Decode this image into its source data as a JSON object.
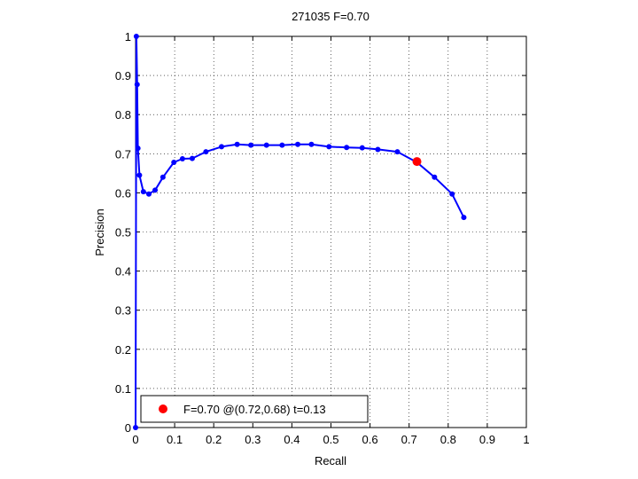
{
  "chart_data": {
    "type": "line",
    "title": "271035 F=0.70",
    "xlabel": "Recall",
    "ylabel": "Precision",
    "xlim": [
      0,
      1
    ],
    "ylim": [
      0,
      1
    ],
    "grid": true,
    "xticks": [
      "0",
      "0.1",
      "0.2",
      "0.3",
      "0.4",
      "0.5",
      "0.6",
      "0.7",
      "0.8",
      "0.9",
      "1"
    ],
    "yticks": [
      "0",
      "0.1",
      "0.2",
      "0.3",
      "0.4",
      "0.5",
      "0.6",
      "0.7",
      "0.8",
      "0.9",
      "1"
    ],
    "series": [
      {
        "color": "#0000ff",
        "x": [
          0.0,
          0.002,
          0.004,
          0.006,
          0.01,
          0.02,
          0.034,
          0.05,
          0.07,
          0.098,
          0.12,
          0.145,
          0.18,
          0.22,
          0.26,
          0.295,
          0.335,
          0.375,
          0.415,
          0.45,
          0.495,
          0.54,
          0.58,
          0.62,
          0.67,
          0.72,
          0.765,
          0.81,
          0.84
        ],
        "y": [
          0.0,
          1.0,
          0.877,
          0.714,
          0.645,
          0.603,
          0.597,
          0.607,
          0.64,
          0.678,
          0.687,
          0.688,
          0.705,
          0.718,
          0.724,
          0.722,
          0.722,
          0.722,
          0.724,
          0.724,
          0.718,
          0.716,
          0.715,
          0.711,
          0.705,
          0.678,
          0.64,
          0.597,
          0.537
        ]
      }
    ],
    "highlight": {
      "x": 0.72,
      "y": 0.68,
      "color": "#ff0000"
    },
    "legend": {
      "position": "bottom-left",
      "entries": [
        {
          "label": "F=0.70 @(0.72,0.68) t=0.13",
          "color": "#ff0000"
        }
      ]
    }
  }
}
